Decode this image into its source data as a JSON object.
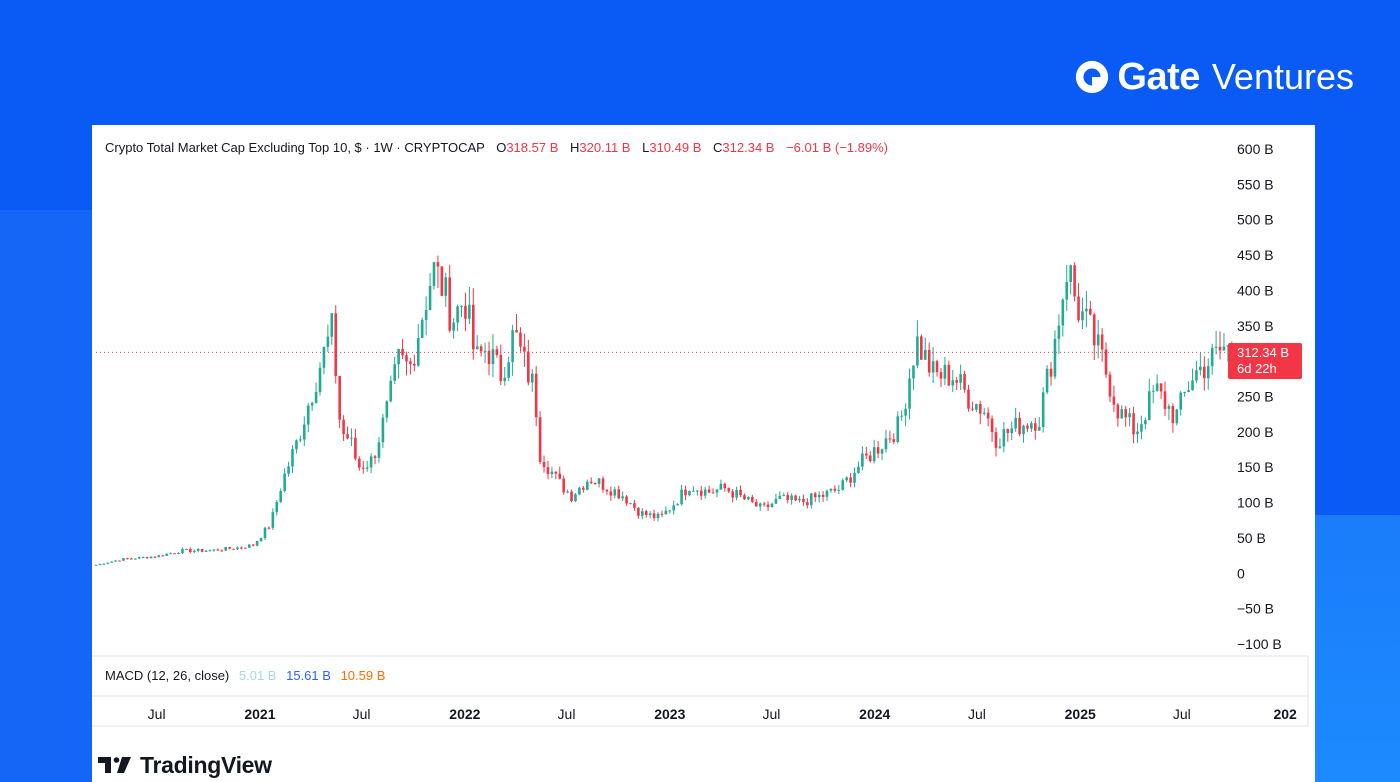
{
  "brand": {
    "strong": "Gate",
    "light": "Ventures"
  },
  "legend": {
    "title": "Crypto Total Market Cap Excluding Top 10, $ · 1W · CRYPTOCAP",
    "open_label": "O",
    "open": "318.57 B",
    "high_label": "H",
    "high": "320.11 B",
    "low_label": "L",
    "low": "310.49 B",
    "close_label": "C",
    "close": "312.34 B",
    "change": "−6.01 B (−1.89%)"
  },
  "price_tag": {
    "value": "312.34 B",
    "countdown": "6d 22h"
  },
  "macd": {
    "label": "MACD (12, 26, close)",
    "v1": "5.01 B",
    "v2": "15.61 B",
    "v3": "10.59 B"
  },
  "footer": {
    "logo_text": "TradingView"
  },
  "colors": {
    "up": "#22ab94",
    "down": "#f23645",
    "brand_bg": "#0a5bf5"
  },
  "chart_data": {
    "type": "candlestick",
    "title": "Crypto Total Market Cap Excluding Top 10, $ · 1W · CRYPTOCAP",
    "y_unit": "B USD",
    "ylim": [
      -100,
      600
    ],
    "y_ticks": [
      "600 B",
      "550 B",
      "500 B",
      "450 B",
      "400 B",
      "350 B",
      "300 B",
      "250 B",
      "200 B",
      "150 B",
      "100 B",
      "50 B",
      "0",
      "−50 B",
      "−100 B"
    ],
    "x_ticks": [
      "Jul",
      "2021",
      "Jul",
      "2022",
      "Jul",
      "2023",
      "Jul",
      "2024",
      "Jul",
      "2025",
      "Jul",
      "202"
    ],
    "x_tick_dates": [
      "2020-07-01",
      "2021-01-01",
      "2021-07-01",
      "2022-01-01",
      "2022-07-01",
      "2023-01-01",
      "2023-07-01",
      "2024-01-01",
      "2024-07-01",
      "2025-01-01",
      "2025-07-01",
      "2026-01-01"
    ],
    "x_range": [
      "2020-03-15",
      "2026-01-31"
    ],
    "last_close": 312.34,
    "close_series": [
      [
        "2020-03-15",
        12
      ],
      [
        "2020-05-01",
        20
      ],
      [
        "2020-07-01",
        24
      ],
      [
        "2020-08-15",
        32
      ],
      [
        "2020-10-01",
        32
      ],
      [
        "2020-11-20",
        36
      ],
      [
        "2020-12-20",
        40
      ],
      [
        "2021-01-20",
        70
      ],
      [
        "2021-02-10",
        130
      ],
      [
        "2021-03-10",
        190
      ],
      [
        "2021-04-01",
        250
      ],
      [
        "2021-04-20",
        300
      ],
      [
        "2021-05-10",
        345
      ],
      [
        "2021-05-25",
        200
      ],
      [
        "2021-06-10",
        190
      ],
      [
        "2021-06-25",
        150
      ],
      [
        "2021-07-20",
        160
      ],
      [
        "2021-08-15",
        230
      ],
      [
        "2021-09-05",
        300
      ],
      [
        "2021-09-25",
        290
      ],
      [
        "2021-10-15",
        360
      ],
      [
        "2021-11-05",
        430
      ],
      [
        "2021-11-20",
        410
      ],
      [
        "2021-12-10",
        360
      ],
      [
        "2022-01-01",
        390
      ],
      [
        "2022-01-20",
        300
      ],
      [
        "2022-02-10",
        320
      ],
      [
        "2022-03-05",
        280
      ],
      [
        "2022-03-30",
        340
      ],
      [
        "2022-04-15",
        300
      ],
      [
        "2022-05-05",
        260
      ],
      [
        "2022-05-15",
        170
      ],
      [
        "2022-06-15",
        130
      ],
      [
        "2022-07-10",
        110
      ],
      [
        "2022-08-10",
        135
      ],
      [
        "2022-09-05",
        125
      ],
      [
        "2022-10-10",
        110
      ],
      [
        "2022-11-10",
        85
      ],
      [
        "2022-12-15",
        78
      ],
      [
        "2023-01-10",
        100
      ],
      [
        "2023-02-05",
        125
      ],
      [
        "2023-03-10",
        115
      ],
      [
        "2023-04-10",
        120
      ],
      [
        "2023-06-15",
        90
      ],
      [
        "2023-07-15",
        105
      ],
      [
        "2023-08-20",
        100
      ],
      [
        "2023-10-01",
        110
      ],
      [
        "2023-11-01",
        120
      ],
      [
        "2023-12-01",
        150
      ],
      [
        "2024-01-15",
        185
      ],
      [
        "2024-02-15",
        210
      ],
      [
        "2024-03-15",
        330
      ],
      [
        "2024-04-15",
        280
      ],
      [
        "2024-05-20",
        280
      ],
      [
        "2024-06-15",
        250
      ],
      [
        "2024-07-15",
        230
      ],
      [
        "2024-08-05",
        190
      ],
      [
        "2024-09-15",
        210
      ],
      [
        "2024-10-20",
        220
      ],
      [
        "2024-11-15",
        320
      ],
      [
        "2024-12-10",
        440
      ],
      [
        "2024-12-25",
        380
      ],
      [
        "2025-01-20",
        340
      ],
      [
        "2025-02-10",
        300
      ],
      [
        "2025-03-10",
        230
      ],
      [
        "2025-04-10",
        200
      ],
      [
        "2025-05-15",
        260
      ],
      [
        "2025-06-20",
        220
      ],
      [
        "2025-07-20",
        280
      ],
      [
        "2025-08-20",
        300
      ],
      [
        "2025-09-15",
        320
      ],
      [
        "2025-09-29",
        312.34
      ]
    ],
    "grid": false,
    "legend_position": "top-left"
  }
}
